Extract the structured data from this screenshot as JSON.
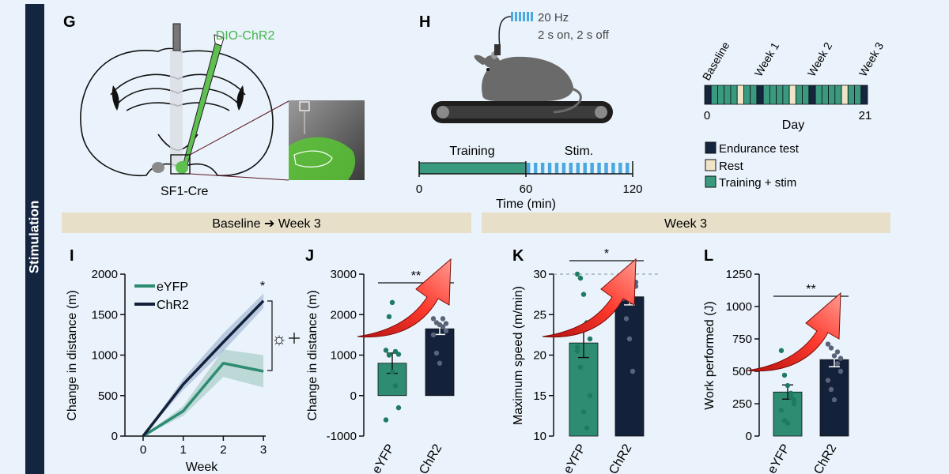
{
  "side_label": "Stimulation",
  "colors": {
    "background": "#eaf3fb",
    "side_bar": "#14263f",
    "section_band": "#e7dfc8",
    "eyfp": "#2e8c73",
    "chr2": "#14213a",
    "diio_green": "#5fbf50",
    "laser_blue": "#4aa8e0",
    "rest": "#efe4c6",
    "arrow_red": "#e4201c"
  },
  "panels": {
    "G": {
      "letter": "G",
      "virus_label": "DIO-ChR2",
      "mouse_label": "SF1-Cre",
      "icons": [
        "brain-section-icon",
        "optic-fiber-icon",
        "injection-needle-icon",
        "histology-micrograph-icon"
      ]
    },
    "H": {
      "letter": "H",
      "stim_freq": "20 Hz",
      "stim_pattern": "2 s on, 2 s off",
      "phase_training": "Training",
      "phase_stim": "Stim.",
      "tick_0": "0",
      "tick_60": "60",
      "tick_120": "120",
      "time_axis_label": "Time (min)",
      "icons": [
        "mouse-on-treadmill-icon",
        "laser-pulse-icon"
      ]
    },
    "schedule": {
      "milestones": [
        "Baseline",
        "Week 1",
        "Week 2",
        "Week 3"
      ],
      "axis_start": "0",
      "axis_label": "Day",
      "axis_end": "21",
      "legend": [
        {
          "label": "Endurance test",
          "color": "#14263f"
        },
        {
          "label": "Rest",
          "color": "#efe4c6"
        },
        {
          "label": "Training + stim",
          "color": "#3a9a80"
        }
      ],
      "sequence": "ETTTTRTTETTTTRTTETTTTRTTE"
    }
  },
  "section_headers": {
    "left": "Baseline ➔ Week 3",
    "right": "Week 3"
  },
  "chart_data": [
    {
      "id": "I",
      "letter": "I",
      "type": "line",
      "title": "",
      "xlabel": "Week",
      "ylabel": "Change in distance (m)",
      "x": [
        0,
        1,
        2,
        3
      ],
      "xlim": [
        0,
        3
      ],
      "ylim": [
        0,
        2000
      ],
      "yticks": [
        "0",
        "500",
        "1000",
        "1500",
        "2000"
      ],
      "xticks": [
        "0",
        "1",
        "2",
        "3"
      ],
      "legend": [
        "eYFP",
        "ChR2"
      ],
      "significance": "*",
      "stim_symbol": "☼",
      "series": [
        {
          "name": "eYFP",
          "values": [
            0,
            310,
            900,
            800
          ],
          "sem": [
            0,
            60,
            170,
            200
          ],
          "color": "#2e8c73"
        },
        {
          "name": "ChR2",
          "values": [
            0,
            640,
            1160,
            1670
          ],
          "sem": [
            0,
            70,
            110,
            90
          ],
          "color": "#14213a"
        }
      ]
    },
    {
      "id": "J",
      "letter": "J",
      "type": "bar",
      "title": "",
      "xlabel": "",
      "ylabel": "Change in distance (m)",
      "ylim": [
        -1000,
        3000
      ],
      "yticks": [
        "-1000",
        "0",
        "1000",
        "2000",
        "3000"
      ],
      "categories": [
        "eYFP",
        "ChR2"
      ],
      "values": [
        800,
        1650
      ],
      "sem": [
        250,
        140
      ],
      "significance": "**",
      "points": [
        [
          1120,
          1000,
          580,
          240,
          -300,
          -600,
          1950,
          2300,
          1090,
          1020
        ],
        [
          1900,
          1800,
          1750,
          1700,
          1600,
          1500,
          1050,
          800,
          1900,
          1780
        ]
      ]
    },
    {
      "id": "K",
      "letter": "K",
      "type": "bar",
      "title": "",
      "xlabel": "",
      "ylabel": "Maximum speed (m/min)",
      "ylim": [
        10,
        30
      ],
      "yticks": [
        "10",
        "15",
        "20",
        "25",
        "30"
      ],
      "categories": [
        "eYFP",
        "ChR2"
      ],
      "values": [
        21.5,
        27.2
      ],
      "sem": [
        1.8,
        1.0
      ],
      "significance": "*",
      "ceiling": 30,
      "points": [
        [
          30,
          29.5,
          27.5,
          24,
          22,
          20.5,
          18.5,
          13,
          11,
          15,
          21
        ],
        [
          30,
          30,
          30,
          30,
          28.5,
          27,
          24.5,
          22,
          18,
          29
        ]
      ]
    },
    {
      "id": "L",
      "letter": "L",
      "type": "bar",
      "title": "",
      "xlabel": "",
      "ylabel": "Work performed (J)",
      "ylim": [
        0,
        1250
      ],
      "yticks": [
        "0",
        "250",
        "500",
        "750",
        "1000",
        "1250"
      ],
      "categories": [
        "eYFP",
        "ChR2"
      ],
      "values": [
        340,
        590
      ],
      "sem": [
        55,
        55
      ],
      "significance": "**",
      "points": [
        [
          660,
          470,
          390,
          300,
          250,
          200,
          120,
          100,
          330,
          280
        ],
        [
          710,
          680,
          620,
          560,
          500,
          430,
          360,
          280,
          650,
          600
        ]
      ]
    }
  ]
}
